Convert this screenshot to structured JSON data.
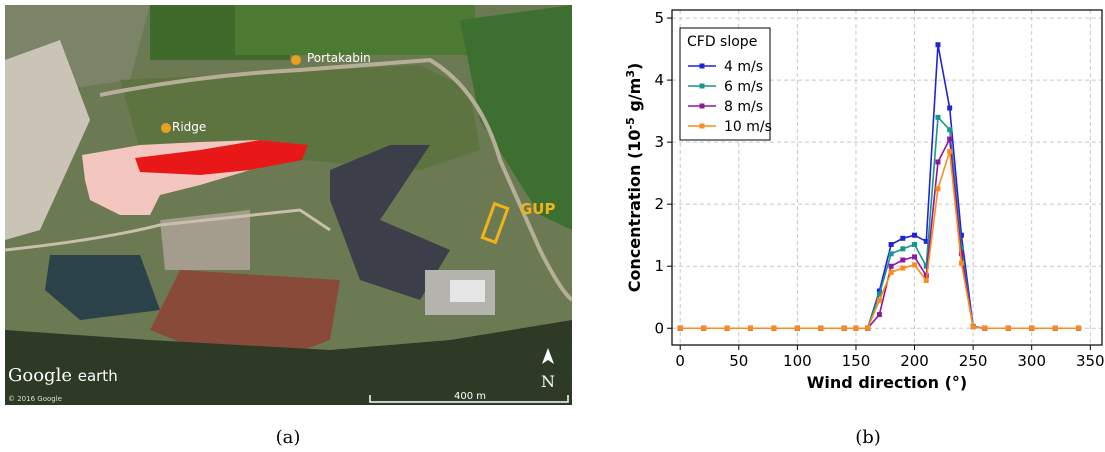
{
  "figure": {
    "panel_a": {
      "caption": "(a)",
      "labels": {
        "portakabin": "Portakabin",
        "ridge": "Ridge",
        "gup": "GUP",
        "brand_google": "Google",
        "brand_earth": "earth",
        "north": "N",
        "scale": "400 m",
        "copyright": "© 2016 Google"
      }
    },
    "panel_b": {
      "caption": "(b)"
    }
  },
  "chart_data": {
    "type": "line",
    "xlabel": "Wind direction (°)",
    "ylabel": [
      "Concentration (10",
      "-5",
      " g/m",
      "3",
      ")"
    ],
    "legend_title": "CFD slope",
    "legend": "upper left",
    "grid": true,
    "xlim": [
      -7,
      360
    ],
    "ylim": [
      -0.27,
      5.13
    ],
    "xticks": [
      0,
      50,
      100,
      150,
      200,
      250,
      300,
      350
    ],
    "yticks": [
      0,
      1,
      2,
      3,
      4,
      5
    ],
    "x": [
      0,
      20,
      40,
      60,
      80,
      100,
      120,
      140,
      150,
      160,
      170,
      180,
      190,
      200,
      210,
      220,
      230,
      240,
      250,
      260,
      280,
      300,
      320,
      340
    ],
    "series": [
      {
        "name": "4 m/s",
        "color": "#1f24d8",
        "values": [
          0,
          0,
          0,
          0,
          0,
          0,
          0,
          0,
          0,
          0,
          0.6,
          1.35,
          1.45,
          1.5,
          1.4,
          4.57,
          3.55,
          1.5,
          0.03,
          0,
          0,
          0,
          0,
          0
        ]
      },
      {
        "name": "6 m/s",
        "color": "#17968c",
        "values": [
          0,
          0,
          0,
          0,
          0,
          0,
          0,
          0,
          0,
          0,
          0.55,
          1.2,
          1.28,
          1.35,
          1.0,
          3.4,
          3.2,
          1.3,
          0.03,
          0,
          0,
          0,
          0,
          0
        ]
      },
      {
        "name": "8 m/s",
        "color": "#8c1a9c",
        "values": [
          0,
          0,
          0,
          0,
          0,
          0,
          0,
          0,
          0,
          0,
          0.22,
          1.0,
          1.1,
          1.15,
          0.85,
          2.68,
          3.05,
          1.2,
          0.02,
          0,
          0,
          0,
          0,
          0
        ]
      },
      {
        "name": "10 m/s",
        "color": "#ff8a1c",
        "values": [
          0,
          0,
          0,
          0,
          0,
          0,
          0,
          0,
          0,
          0,
          0.45,
          0.9,
          0.97,
          1.02,
          0.77,
          2.25,
          2.85,
          1.05,
          0.02,
          0,
          0,
          0,
          0,
          0
        ]
      }
    ]
  }
}
